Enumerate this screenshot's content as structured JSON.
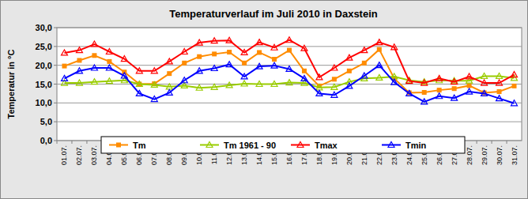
{
  "chart_data": {
    "type": "line",
    "title": "Temperaturverlauf im Juli 2010 in Daxstein",
    "y_label": "Temperatur in °C",
    "categories": [
      "01.07.",
      "02.07.",
      "03.07.",
      "04.07.",
      "05.07.",
      "06.07.",
      "07.07.",
      "08.07.",
      "09.07.",
      "10.07.",
      "11.07.",
      "12.07.",
      "13.07.",
      "14.07.",
      "15.07.",
      "16.07.",
      "17.07.",
      "18.07.",
      "19.07.",
      "20.07.",
      "21.07.",
      "22.07.",
      "23.07.",
      "24.07.",
      "25.07.",
      "26.07.",
      "27.07.",
      "28.07.",
      "29.07.",
      "30.07.",
      "31.07."
    ],
    "series": [
      {
        "name": "Tm",
        "color": "#ff8c00",
        "marker": "square",
        "values": [
          19.8,
          21.3,
          22.6,
          21.0,
          18.2,
          15.0,
          15.1,
          17.8,
          20.6,
          22.3,
          23.0,
          23.5,
          20.6,
          23.4,
          21.6,
          24.0,
          18.5,
          14.5,
          16.3,
          18.5,
          20.6,
          24.2,
          16.5,
          12.7,
          12.8,
          13.4,
          13.8,
          14.6,
          12.7,
          13.0,
          14.5
        ]
      },
      {
        "name": "Tm 1961 - 90",
        "color": "#99cc00",
        "marker": "triangle",
        "values": [
          15.3,
          15.3,
          15.6,
          15.8,
          16.0,
          15.0,
          14.8,
          14.3,
          14.6,
          14.0,
          14.2,
          14.7,
          15.1,
          15.0,
          15.0,
          15.4,
          15.3,
          14.1,
          14.2,
          15.6,
          16.5,
          16.7,
          17.0,
          16.0,
          15.6,
          16.0,
          15.9,
          15.9,
          17.1,
          17.1,
          16.6
        ]
      },
      {
        "name": "Tmax",
        "color": "#ff0000",
        "marker": "triangle",
        "values": [
          23.3,
          24.0,
          25.6,
          23.6,
          21.7,
          18.5,
          18.5,
          21.0,
          23.6,
          26.0,
          26.5,
          26.6,
          23.4,
          26.1,
          24.7,
          26.7,
          24.5,
          16.8,
          19.3,
          22.0,
          24.0,
          26.1,
          24.8,
          15.8,
          15.3,
          16.5,
          15.6,
          17.0,
          15.3,
          15.3,
          17.5
        ]
      },
      {
        "name": "Tmin",
        "color": "#0000ff",
        "marker": "triangle",
        "values": [
          16.5,
          18.5,
          19.3,
          19.3,
          17.2,
          12.5,
          11.0,
          12.7,
          16.0,
          18.5,
          19.2,
          20.2,
          17.0,
          19.7,
          19.9,
          19.0,
          16.5,
          12.5,
          12.1,
          14.5,
          17.2,
          20.0,
          15.5,
          12.5,
          10.3,
          11.8,
          11.3,
          13.0,
          12.5,
          11.2,
          9.9
        ]
      }
    ],
    "ylim": [
      0,
      30
    ],
    "yticks": [
      {
        "value": 0,
        "label": "0,0"
      },
      {
        "value": 5,
        "label": "5,0"
      },
      {
        "value": 10,
        "label": "10,0"
      },
      {
        "value": 15,
        "label": "15,0"
      },
      {
        "value": 20,
        "label": "20,0"
      },
      {
        "value": 25,
        "label": "25,0"
      },
      {
        "value": 30,
        "label": "30,0"
      }
    ],
    "grid": true,
    "legend": "bottom"
  }
}
